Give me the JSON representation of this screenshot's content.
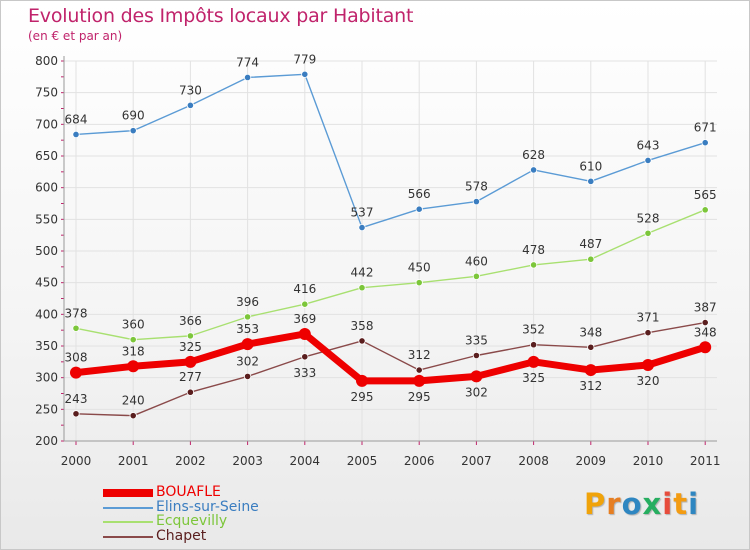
{
  "title": "Evolution des Impôts locaux par Habitant",
  "subtitle": "(en € et par an)",
  "logo": {
    "text": "Proxiti",
    "letters": [
      "P",
      "r",
      "o",
      "x",
      "i",
      "t",
      "i"
    ],
    "colors": [
      "#f0a30a",
      "#e67e22",
      "#2e86c1",
      "#27ae60",
      "#e74c3c",
      "#f39c12",
      "#2e86c1"
    ]
  },
  "chart_data": {
    "type": "line",
    "x": [
      "2000",
      "2001",
      "2002",
      "2003",
      "2004",
      "2005",
      "2006",
      "2007",
      "2008",
      "2009",
      "2010",
      "2011"
    ],
    "ylim": [
      200,
      800
    ],
    "yticks": [
      200,
      250,
      300,
      350,
      400,
      450,
      500,
      550,
      600,
      650,
      700,
      750,
      800
    ],
    "grid": true,
    "legend_position": "bottom-left",
    "series": [
      {
        "name": "BOUAFLE",
        "color": "#ee0000",
        "emphasis": true,
        "values": [
          308,
          318,
          325,
          353,
          369,
          295,
          295,
          302,
          325,
          312,
          320,
          348
        ]
      },
      {
        "name": "Elins-sur-Seine",
        "color": "#5b9bd5",
        "marker": "#3a7dc0",
        "values": [
          684,
          690,
          730,
          774,
          779,
          537,
          566,
          578,
          628,
          610,
          643,
          671
        ]
      },
      {
        "name": "Ecquevilly",
        "color": "#a8e070",
        "marker": "#7cc63a",
        "values": [
          378,
          360,
          366,
          396,
          416,
          442,
          450,
          460,
          478,
          487,
          528,
          565
        ]
      },
      {
        "name": "Chapet",
        "color": "#8a4a4a",
        "marker": "#5a1e1e",
        "values": [
          243,
          240,
          277,
          302,
          333,
          358,
          312,
          335,
          352,
          348,
          371,
          387
        ]
      }
    ]
  }
}
